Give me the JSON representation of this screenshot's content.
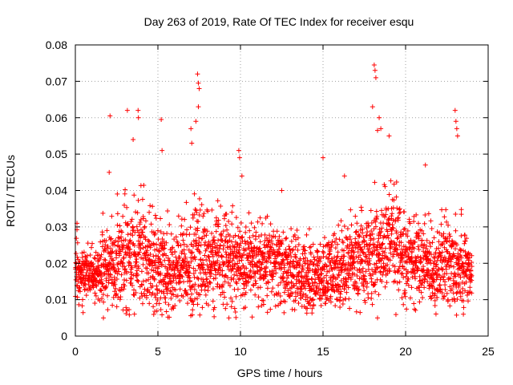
{
  "chart_data": {
    "type": "scatter",
    "title": "Day 263 of 2019, Rate Of TEC Index for receiver esqu",
    "xlabel": "GPS time / hours",
    "ylabel": "ROTI / TECUs",
    "xlim": [
      0,
      25
    ],
    "ylim": [
      0,
      0.08
    ],
    "xticks": [
      0,
      5,
      10,
      15,
      20,
      25
    ],
    "yticks": [
      0,
      0.01,
      0.02,
      0.03,
      0.04,
      0.05,
      0.06,
      0.07,
      0.08
    ],
    "xtick_labels": [
      "0",
      "5",
      "10",
      "15",
      "20",
      "25"
    ],
    "ytick_labels": [
      "0",
      "0.01",
      "0.02",
      "0.03",
      "0.04",
      "0.05",
      "0.06",
      "0.07",
      "0.08"
    ],
    "grid": true,
    "marker": "+",
    "color": "#ff0000",
    "series": [
      {
        "name": "ROTI",
        "x_range_hours": [
          0,
          24
        ],
        "sampling_interval_hours": 0.025,
        "baseline_profile": {
          "hours": [
            0,
            1,
            2,
            3,
            4,
            5,
            6,
            7,
            8,
            9,
            10,
            11,
            12,
            13,
            14,
            15,
            16,
            17,
            18,
            19,
            20,
            21,
            22,
            23,
            24
          ],
          "typical_roti": [
            0.018,
            0.016,
            0.019,
            0.023,
            0.022,
            0.019,
            0.017,
            0.021,
            0.02,
            0.021,
            0.02,
            0.02,
            0.02,
            0.018,
            0.016,
            0.016,
            0.019,
            0.02,
            0.022,
            0.026,
            0.022,
            0.02,
            0.019,
            0.021,
            0.018
          ],
          "typical_spread": [
            0.005,
            0.004,
            0.006,
            0.009,
            0.009,
            0.008,
            0.008,
            0.009,
            0.008,
            0.008,
            0.007,
            0.007,
            0.007,
            0.006,
            0.006,
            0.006,
            0.007,
            0.007,
            0.008,
            0.009,
            0.007,
            0.007,
            0.007,
            0.009,
            0.005
          ]
        },
        "notable_points": [
          {
            "x": 0.1,
            "y": 0.031
          },
          {
            "x": 2.05,
            "y": 0.045
          },
          {
            "x": 2.1,
            "y": 0.0605
          },
          {
            "x": 3.15,
            "y": 0.062
          },
          {
            "x": 3.5,
            "y": 0.054
          },
          {
            "x": 3.8,
            "y": 0.062
          },
          {
            "x": 3.82,
            "y": 0.06
          },
          {
            "x": 5.2,
            "y": 0.0595
          },
          {
            "x": 5.25,
            "y": 0.051
          },
          {
            "x": 7.0,
            "y": 0.057
          },
          {
            "x": 7.05,
            "y": 0.053
          },
          {
            "x": 7.3,
            "y": 0.059
          },
          {
            "x": 7.4,
            "y": 0.072
          },
          {
            "x": 7.45,
            "y": 0.0695
          },
          {
            "x": 7.5,
            "y": 0.068
          },
          {
            "x": 7.45,
            "y": 0.063
          },
          {
            "x": 9.9,
            "y": 0.051
          },
          {
            "x": 9.95,
            "y": 0.049
          },
          {
            "x": 12.5,
            "y": 0.04
          },
          {
            "x": 15.0,
            "y": 0.049
          },
          {
            "x": 16.3,
            "y": 0.044
          },
          {
            "x": 18.0,
            "y": 0.063
          },
          {
            "x": 18.1,
            "y": 0.0745
          },
          {
            "x": 18.15,
            "y": 0.073
          },
          {
            "x": 18.2,
            "y": 0.071
          },
          {
            "x": 18.3,
            "y": 0.0565
          },
          {
            "x": 18.4,
            "y": 0.06
          },
          {
            "x": 18.5,
            "y": 0.057
          },
          {
            "x": 19.0,
            "y": 0.055
          },
          {
            "x": 18.3,
            "y": 0.005
          },
          {
            "x": 21.2,
            "y": 0.047
          },
          {
            "x": 23.0,
            "y": 0.062
          },
          {
            "x": 23.05,
            "y": 0.059
          },
          {
            "x": 23.1,
            "y": 0.057
          },
          {
            "x": 23.15,
            "y": 0.055
          },
          {
            "x": 1.7,
            "y": 0.005
          },
          {
            "x": 9.3,
            "y": 0.005
          },
          {
            "x": 23.5,
            "y": 0.006
          }
        ]
      }
    ]
  }
}
